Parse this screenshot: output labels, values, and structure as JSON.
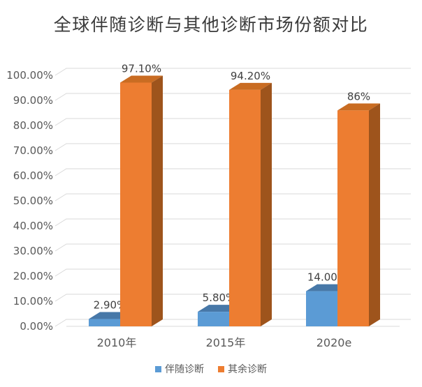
{
  "title": "全球伴随诊断与其他诊断市场份额对比",
  "chart_data": {
    "type": "bar",
    "style": "3d-clustered-column",
    "title": "全球伴随诊断与其他诊断市场份额对比",
    "categories": [
      "2010年",
      "2015年",
      "2020e"
    ],
    "series": [
      {
        "name": "伴随诊断",
        "color": "#5B9BD5",
        "top_color": "#4778A8",
        "side_color": "#3B6592",
        "values": [
          2.9,
          5.8,
          14.0
        ],
        "data_labels": [
          "2.90%",
          "5.80%",
          "14.00%"
        ]
      },
      {
        "name": "其余诊断",
        "color": "#ED7D31",
        "top_color": "#C96C22",
        "side_color": "#9E541C",
        "values": [
          97.1,
          94.2,
          86.0
        ],
        "data_labels": [
          "97.10%",
          "94.20%",
          "86%"
        ]
      }
    ],
    "ylim": [
      0,
      100
    ],
    "y_tick_step": 10,
    "y_tick_labels": [
      "0.00%",
      "10.00%",
      "20.00%",
      "30.00%",
      "40.00%",
      "50.00%",
      "60.00%",
      "70.00%",
      "80.00%",
      "90.00%",
      "100.00%"
    ],
    "grid": true,
    "gridline_color": "#D9D9D9",
    "axis_text_color": "#595959",
    "data_label_color": "#404040",
    "legend_position": "bottom"
  },
  "legend": {
    "items": [
      {
        "label": "伴随诊断",
        "color": "#5B9BD5"
      },
      {
        "label": "其余诊断",
        "color": "#ED7D31"
      }
    ]
  }
}
